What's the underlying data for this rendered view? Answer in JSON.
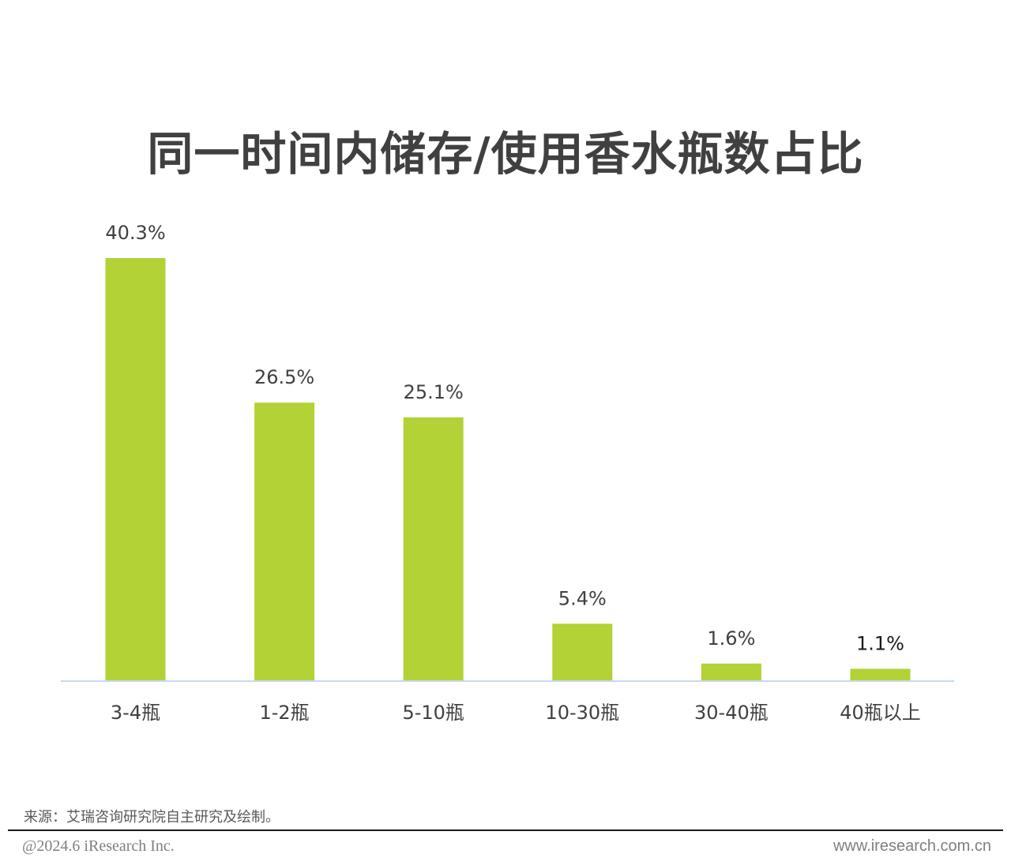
{
  "chart_data": {
    "type": "bar",
    "title": "同一时间内储存/使用香水瓶数占比",
    "categories": [
      "3-4瓶",
      "1-2瓶",
      "5-10瓶",
      "10-30瓶",
      "30-40瓶",
      "40瓶以上"
    ],
    "values": [
      40.3,
      26.5,
      25.1,
      5.4,
      1.6,
      1.1
    ],
    "value_labels": [
      "40.3%",
      "26.5%",
      "25.1%",
      "5.4%",
      "1.6%",
      "1.1%"
    ],
    "ylim": [
      0,
      40.3
    ],
    "grid": false,
    "legend": "none",
    "bar_color": "#b2d235",
    "axis_color": "#c6d9f1"
  },
  "footer": {
    "source": "来源：艾瑞咨询研究院自主研究及绘制。",
    "copyright": "@2024.6 iResearch Inc.",
    "website": "www.iresearch.com.cn"
  }
}
